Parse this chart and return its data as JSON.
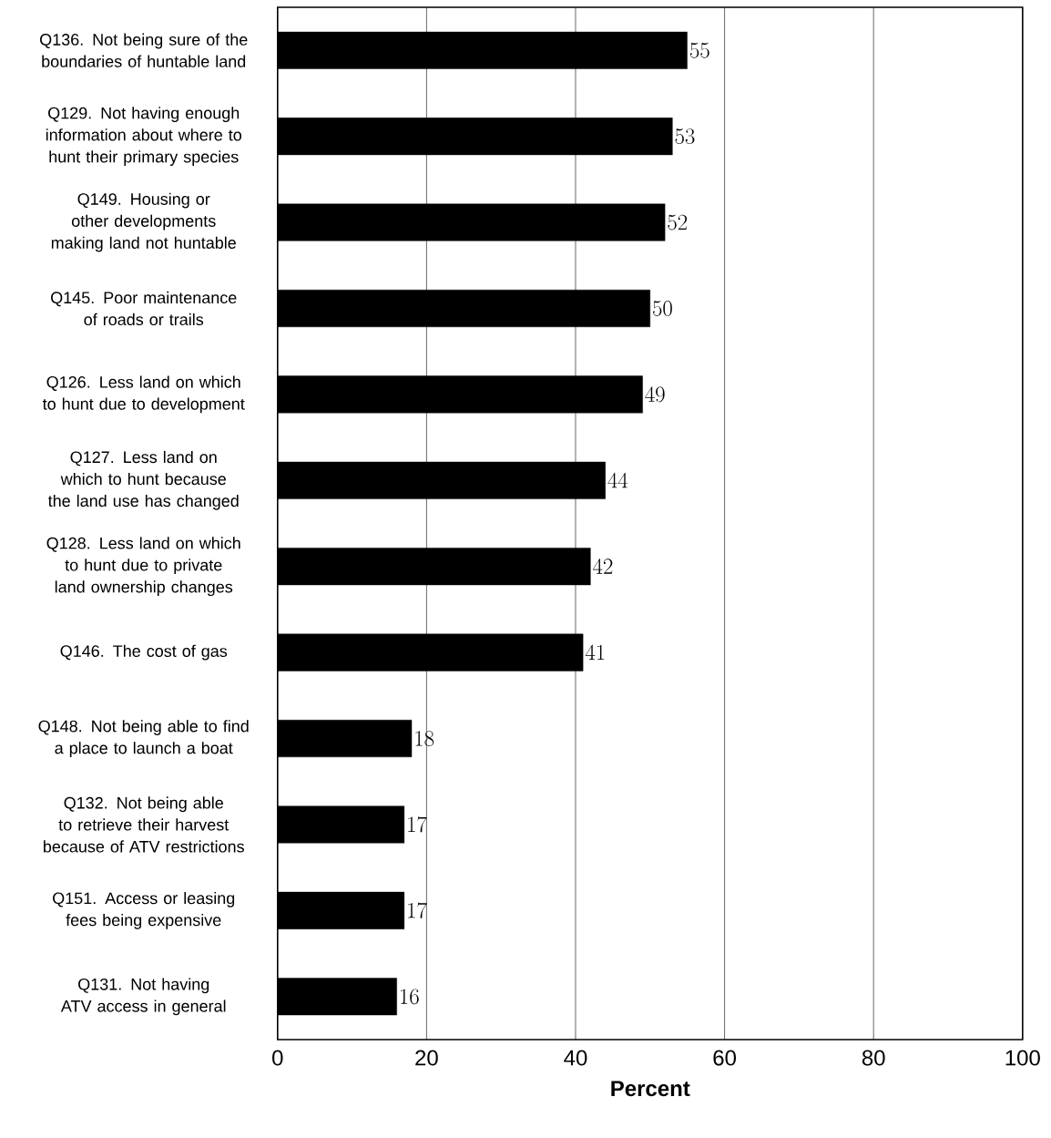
{
  "chart_data": {
    "type": "bar",
    "orientation": "horizontal",
    "xlabel": "Percent",
    "categories": [
      "Q136. Not being sure of the boundaries of huntable land",
      "Q129. Not having enough information about where to hunt their primary species",
      "Q149. Housing or other developments making land not huntable",
      "Q145. Poor maintenance of roads or trails",
      "Q126. Less land on which to hunt due to development",
      "Q127. Less land on which to hunt because the land use has changed",
      "Q128. Less land on which to hunt due to private land ownership changes",
      "Q146. The cost of gas",
      "Q148. Not being able to find a place to launch a boat",
      "Q132. Not being able to retrieve their harvest because of ATV restrictions",
      "Q151. Access or leasing fees being expensive",
      "Q131. Not having ATV access in general"
    ],
    "values": [
      55,
      53,
      52,
      50,
      49,
      44,
      42,
      41,
      18,
      17,
      17,
      16
    ],
    "color": "#000000",
    "xlim": [
      0,
      100
    ],
    "xticks": [
      0,
      20,
      40,
      60,
      80,
      100
    ],
    "grid": "x",
    "data_labels": true
  }
}
